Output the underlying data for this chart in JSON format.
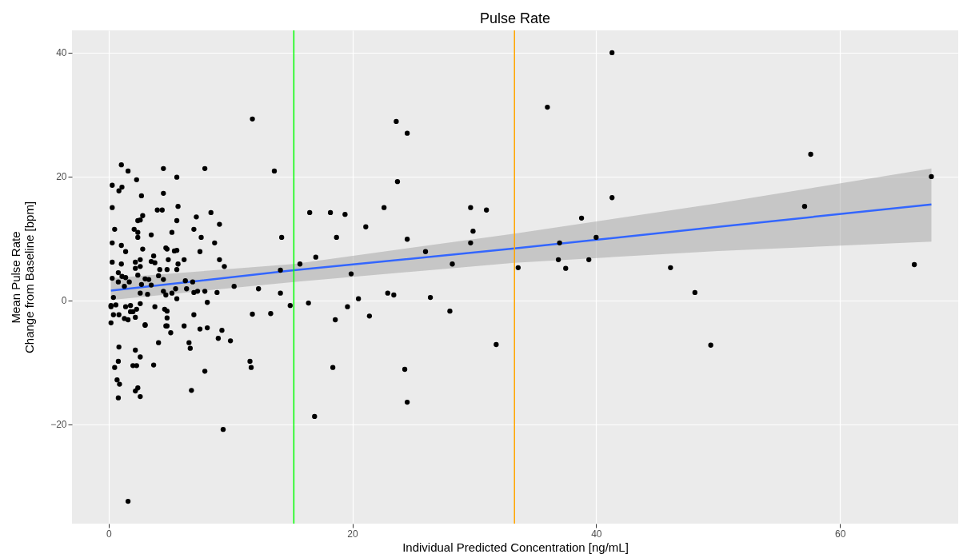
{
  "chart_data": {
    "type": "scatter",
    "title": "Pulse Rate",
    "xlabel": "Individual Predicted Concentration [ng/mL]",
    "ylabel": "Mean Pulse Rate\nChange from Baseline [bpm]",
    "xlim": [
      -3.0,
      69.7
    ],
    "ylim": [
      -36,
      43.6
    ],
    "xticks": [
      0,
      20,
      40,
      60
    ],
    "yticks": [
      -20,
      0,
      20,
      40
    ],
    "grid": true,
    "ref_lines": [
      {
        "axis": "x",
        "value": 15.2,
        "color": "#00ff00"
      },
      {
        "axis": "x",
        "value": 33.3,
        "color": "#ffa500"
      }
    ],
    "series": [
      {
        "color": "#000000",
        "marker": "circle",
        "x": [
          41.3,
          36.0,
          57.6,
          67.5,
          41.3,
          57.1,
          38.8,
          40.0,
          37.0,
          36.9,
          39.4,
          37.5,
          33.6,
          46.1,
          66.1,
          48.1,
          49.4,
          31.8,
          11.8,
          23.6,
          24.5,
          13.6,
          23.7,
          16.5,
          18.2,
          19.4,
          22.6,
          21.1,
          29.7,
          31.0,
          29.9,
          14.2,
          18.7,
          24.5,
          29.7,
          17.0,
          26.0,
          15.7,
          28.2,
          14.1,
          19.9,
          12.3,
          14.1,
          22.9,
          23.4,
          26.4,
          16.4,
          20.5,
          14.9,
          19.6,
          11.8,
          13.3,
          21.4,
          18.6,
          28.0,
          11.6,
          11.7,
          18.4,
          24.3,
          24.5,
          16.9,
          9.4,
          1.6,
          1.05,
          1.6,
          4.5,
          7.9,
          2.3,
          5.6,
          0.3,
          1.1,
          0.85,
          2.7,
          4.5,
          0.3,
          4.0,
          4.4,
          5.7,
          8.4,
          2.8,
          2.4,
          2.6,
          5.6,
          7.2,
          9.1,
          0.5,
          2.1,
          2.4,
          2.4,
          3.5,
          5.2,
          7.0,
          7.6,
          0.3,
          1.05,
          1.4,
          2.8,
          4.7,
          4.8,
          5.4,
          5.6,
          7.5,
          8.7,
          3.7,
          0.3,
          1.05,
          2.2,
          2.6,
          3.5,
          3.8,
          4.9,
          6.2,
          5.7,
          9.1,
          9.5,
          2.2,
          2.6,
          4.2,
          4.8,
          5.6,
          0.8,
          2.4,
          0.3,
          1.1,
          1.4,
          4.1,
          0.8,
          1.7,
          3.0,
          3.3,
          4.5,
          6.3,
          6.9,
          1.3,
          2.7,
          3.5,
          5.5,
          6.4,
          0.4,
          2.6,
          3.2,
          4.5,
          4.7,
          5.2,
          7.0,
          7.3,
          7.9,
          8.9,
          10.3,
          5.6,
          0.2,
          0.6,
          1.4,
          1.8,
          2.6,
          3.8,
          4.6,
          4.8,
          8.1,
          0.2,
          0.4,
          0.85,
          1.3,
          1.6,
          2.0,
          2.2,
          2.3,
          1.8,
          0.2,
          3.0,
          3.0,
          4.8,
          4.7,
          4.8,
          7.0,
          6.2,
          5.1,
          7.5,
          8.1,
          9.3,
          9.0,
          10.0,
          4.1,
          6.6,
          6.7,
          0.85,
          2.2,
          2.6,
          0.8,
          0.5,
          2.0,
          2.3,
          3.7,
          7.9,
          0.7,
          0.9,
          2.4,
          2.2,
          2.6,
          0.8,
          6.8
        ],
        "values": [
          40,
          31.2,
          23.6,
          20,
          16.6,
          15.2,
          13.3,
          10.2,
          9.3,
          6.6,
          6.6,
          5.2,
          5.3,
          5.3,
          5.8,
          1.3,
          -7.2,
          -7.1,
          29.3,
          28.9,
          27.0,
          20.9,
          19.2,
          14.2,
          14.2,
          13.9,
          15.0,
          11.9,
          15.0,
          14.6,
          11.2,
          10.2,
          10.2,
          9.9,
          9.3,
          7.0,
          7.9,
          5.9,
          5.9,
          4.9,
          4.3,
          1.9,
          1.2,
          1.2,
          0.9,
          0.5,
          -0.4,
          0.3,
          -0.8,
          -1.0,
          -2.2,
          -2.1,
          -2.5,
          -3.1,
          -1.7,
          -9.8,
          -10.8,
          -10.8,
          -11.1,
          -16.4,
          -18.7,
          -20.8,
          -32.4,
          21.9,
          20.9,
          21.3,
          21.3,
          19.5,
          19.9,
          18.6,
          18.3,
          17.7,
          16.9,
          17.3,
          15.0,
          14.6,
          14.6,
          15.2,
          14.2,
          13.7,
          12.9,
          13.0,
          12.9,
          13.5,
          12.3,
          11.5,
          11.5,
          11.0,
          10.2,
          10.6,
          11.0,
          11.5,
          10.2,
          9.3,
          8.9,
          7.9,
          8.3,
          8.5,
          8.3,
          8.0,
          8.1,
          7.9,
          9.3,
          7.2,
          6.2,
          5.9,
          6.2,
          6.6,
          6.3,
          6.1,
          6.6,
          6.6,
          5.9,
          6.6,
          5.5,
          5.2,
          5.5,
          5.0,
          5.0,
          5.0,
          4.5,
          4.1,
          3.6,
          3.9,
          3.7,
          4.0,
          3.0,
          3.0,
          3.5,
          3.4,
          3.4,
          3.2,
          3.0,
          2.3,
          2.6,
          2.5,
          1.9,
          1.9,
          0.5,
          1.2,
          1.0,
          1.5,
          0.9,
          1.2,
          1.3,
          1.5,
          1.5,
          1.3,
          2.3,
          0.3,
          -0.8,
          -0.7,
          -1.0,
          -0.8,
          -0.5,
          -1.0,
          -1.4,
          -1.7,
          -0.3,
          -1.0,
          -2.3,
          -2.3,
          -2.9,
          -3.1,
          -1.8,
          -2.7,
          -1.4,
          -1.8,
          -3.6,
          -3.9,
          -4.0,
          -2.8,
          -4.1,
          -4.1,
          -2.3,
          -4.1,
          -5.2,
          -4.6,
          -4.4,
          -4.8,
          -6.1,
          -6.5,
          -6.8,
          -6.8,
          -7.7,
          -7.5,
          -8.0,
          -9.1,
          -9.8,
          -10.8,
          -10.5,
          -10.5,
          -10.4,
          -11.4,
          -12.8,
          -13.5,
          -14.1,
          -14.6,
          -15.5,
          -15.7,
          -14.5
        ]
      },
      {
        "type": "line",
        "color": "#3366ff",
        "x": [
          0.2,
          15.2,
          33.3,
          50,
          67.5
        ],
        "values": [
          1.6,
          4.9,
          8.4,
          11.9,
          15.5
        ],
        "lower": [
          0.1,
          3.0,
          6.1,
          8.0,
          9.5
        ],
        "upper": [
          3.6,
          5.9,
          10.8,
          15.7,
          21.3
        ]
      }
    ]
  }
}
